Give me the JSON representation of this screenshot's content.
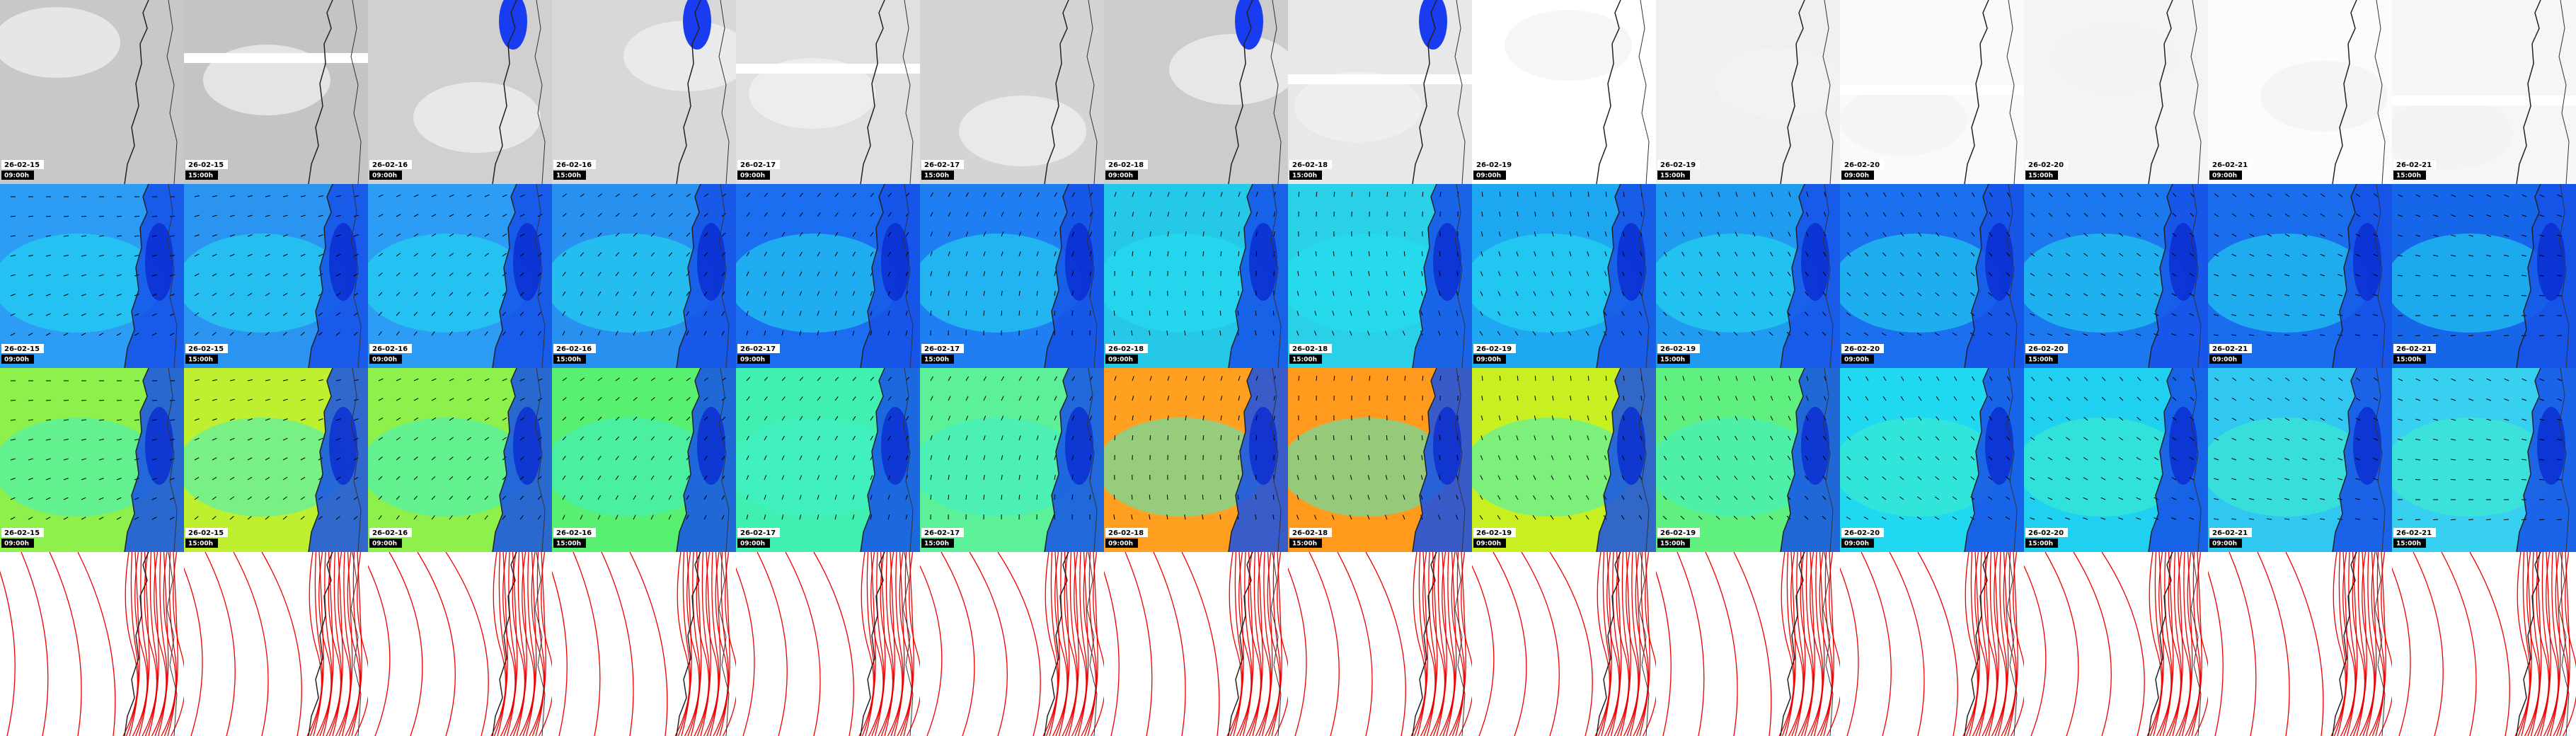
{
  "columns": [
    {
      "date": "26-02-15",
      "time": "09:00h"
    },
    {
      "date": "26-02-15",
      "time": "15:00h"
    },
    {
      "date": "26-02-16",
      "time": "09:00h"
    },
    {
      "date": "26-02-16",
      "time": "15:00h"
    },
    {
      "date": "26-02-17",
      "time": "09:00h"
    },
    {
      "date": "26-02-17",
      "time": "15:00h"
    },
    {
      "date": "26-02-18",
      "time": "09:00h"
    },
    {
      "date": "26-02-18",
      "time": "15:00h"
    },
    {
      "date": "26-02-19",
      "time": "09:00h"
    },
    {
      "date": "26-02-19",
      "time": "15:00h"
    },
    {
      "date": "26-02-20",
      "time": "09:00h"
    },
    {
      "date": "26-02-20",
      "time": "15:00h"
    },
    {
      "date": "26-02-21",
      "time": "09:00h"
    },
    {
      "date": "26-02-21",
      "time": "15:00h"
    }
  ]
}
